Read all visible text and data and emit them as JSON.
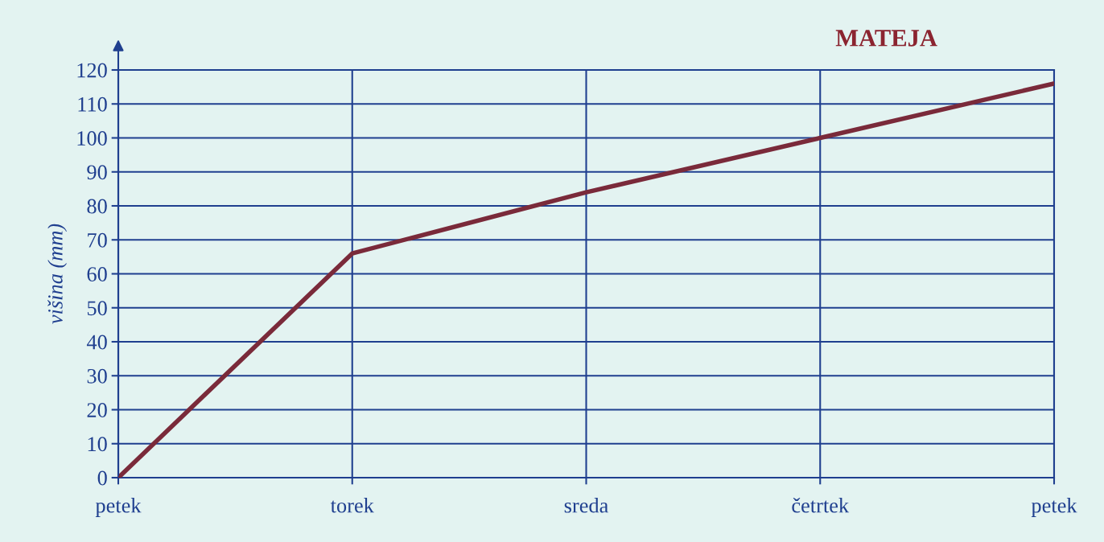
{
  "chart_data": {
    "type": "line",
    "title": "MATEJA",
    "ylabel": "višina (mm)",
    "categories": [
      "petek",
      "torek",
      "sreda",
      "četrtek",
      "petek"
    ],
    "series": [
      {
        "color": "#7a2a3a",
        "values": [
          0,
          66,
          84,
          100,
          116
        ]
      }
    ],
    "ylim": [
      0,
      120
    ],
    "yticks": [
      0,
      10,
      20,
      30,
      40,
      50,
      60,
      70,
      80,
      90,
      100,
      110,
      120
    ],
    "grid": true,
    "marker": "none",
    "line_style": "solid"
  }
}
